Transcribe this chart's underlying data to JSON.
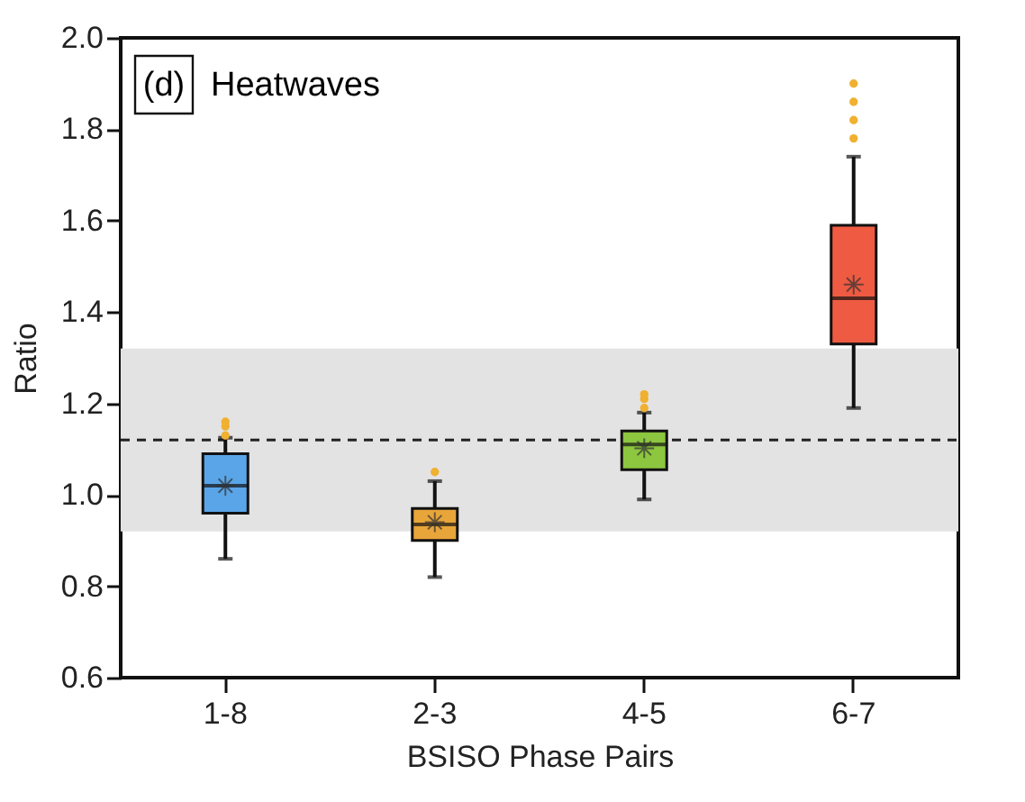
{
  "chart_data": {
    "type": "box",
    "annotations": [
      "(d)",
      "Heatwaves"
    ],
    "xlabel": "BSISO Phase Pairs",
    "ylabel": "Ratio",
    "categories": [
      "1-8",
      "2-3",
      "4-5",
      "6-7"
    ],
    "colors": [
      "#5aa5e8",
      "#e8a53a",
      "#8dc63f",
      "#ef5b42"
    ],
    "boxes": [
      {
        "low": 0.86,
        "q1": 0.96,
        "median": 1.02,
        "q3": 1.09,
        "high": 1.125,
        "mean": 1.02,
        "outliers": [
          1.13,
          1.15,
          1.16
        ]
      },
      {
        "low": 0.82,
        "q1": 0.9,
        "median": 0.935,
        "q3": 0.97,
        "high": 1.03,
        "mean": 0.94,
        "outliers": [
          1.05
        ]
      },
      {
        "low": 0.99,
        "q1": 1.055,
        "median": 1.11,
        "q3": 1.14,
        "high": 1.18,
        "mean": 1.102,
        "outliers": [
          1.19,
          1.21,
          1.22
        ]
      },
      {
        "low": 1.19,
        "q1": 1.33,
        "median": 1.43,
        "q3": 1.59,
        "high": 1.74,
        "mean": 1.46,
        "outliers": [
          1.78,
          1.82,
          1.86,
          1.9
        ]
      }
    ],
    "ylim": [
      0.6,
      2.0
    ],
    "yticks": [
      0.6,
      0.8,
      {
        "value": 1,
        "label": "1.0"
      },
      1.2,
      1.4,
      1.6,
      1.8,
      {
        "value": 2,
        "label": "2.0"
      }
    ],
    "ref_lines": [
      {
        "axis": "y",
        "value": 1.12,
        "line_style": "dashed",
        "color": "#222222"
      }
    ],
    "bands": [
      {
        "axis": "y",
        "from": 0.92,
        "to": 1.32,
        "color": "#e3e3e3"
      }
    ],
    "grid": false
  }
}
